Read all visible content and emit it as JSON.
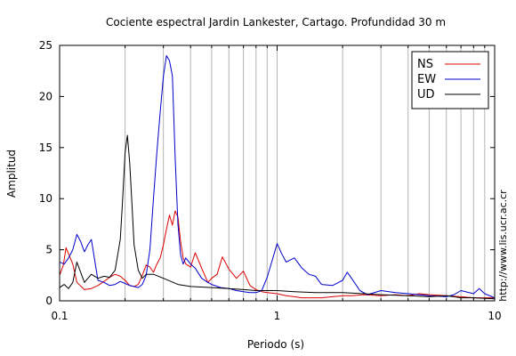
{
  "chart_data": {
    "type": "line",
    "title": "Cociente espectral Jardin Lankester, Cartago. Profundidad 30 m",
    "xlabel": "Periodo (s)",
    "ylabel": "Amplitud",
    "xscale": "log",
    "xlim": [
      0.1,
      10
    ],
    "ylim": [
      0,
      25
    ],
    "xticks": [
      0.1,
      1,
      10
    ],
    "xtick_labels": [
      "0.1",
      "1",
      "10"
    ],
    "yticks": [
      0,
      5,
      10,
      15,
      20,
      25
    ],
    "ytick_labels": [
      "0",
      "5",
      "10",
      "15",
      "20",
      "25"
    ],
    "grid": "vertical, log-spaced",
    "legend_position": "top-right",
    "side_annotation": "http://www.lis.ucr.ac.cr",
    "series": [
      {
        "name": "NS",
        "color": "#dd0000",
        "x": [
          0.1,
          0.104,
          0.107,
          0.11,
          0.115,
          0.12,
          0.13,
          0.14,
          0.15,
          0.16,
          0.17,
          0.18,
          0.19,
          0.2,
          0.21,
          0.22,
          0.23,
          0.24,
          0.25,
          0.26,
          0.27,
          0.28,
          0.29,
          0.3,
          0.31,
          0.32,
          0.33,
          0.34,
          0.35,
          0.36,
          0.37,
          0.38,
          0.4,
          0.42,
          0.45,
          0.48,
          0.5,
          0.53,
          0.56,
          0.6,
          0.65,
          0.7,
          0.75,
          0.8,
          0.85,
          0.9,
          1.0,
          1.1,
          1.2,
          1.3,
          1.4,
          1.6,
          1.8,
          2.0,
          2.2,
          2.5,
          3.0,
          3.5,
          4.0,
          4.5,
          5.0,
          6.0,
          7.0,
          8.0,
          9.0,
          10.0
        ],
        "y": [
          2.5,
          3.5,
          5.2,
          4.6,
          3.6,
          1.8,
          1.1,
          1.2,
          1.5,
          1.9,
          2.3,
          2.6,
          2.4,
          2.0,
          1.5,
          1.4,
          1.6,
          2.5,
          3.5,
          3.3,
          2.8,
          3.6,
          4.2,
          5.5,
          7.0,
          8.4,
          7.4,
          8.8,
          8.2,
          5.8,
          4.2,
          3.6,
          3.3,
          4.7,
          3.2,
          1.8,
          2.2,
          2.6,
          4.3,
          3.1,
          2.2,
          2.9,
          1.5,
          1.1,
          0.9,
          0.8,
          0.7,
          0.5,
          0.4,
          0.3,
          0.3,
          0.3,
          0.4,
          0.5,
          0.5,
          0.6,
          0.5,
          0.6,
          0.5,
          0.7,
          0.6,
          0.5,
          0.4,
          0.3,
          0.3,
          0.3
        ]
      },
      {
        "name": "EW",
        "color": "#0000cc",
        "x": [
          0.1,
          0.105,
          0.11,
          0.115,
          0.12,
          0.125,
          0.13,
          0.135,
          0.14,
          0.15,
          0.16,
          0.17,
          0.18,
          0.19,
          0.2,
          0.21,
          0.22,
          0.23,
          0.24,
          0.25,
          0.26,
          0.27,
          0.28,
          0.29,
          0.3,
          0.31,
          0.32,
          0.33,
          0.34,
          0.35,
          0.36,
          0.37,
          0.38,
          0.4,
          0.42,
          0.45,
          0.48,
          0.5,
          0.55,
          0.6,
          0.65,
          0.7,
          0.75,
          0.8,
          0.85,
          0.9,
          0.95,
          1.0,
          1.05,
          1.1,
          1.2,
          1.3,
          1.4,
          1.5,
          1.6,
          1.8,
          2.0,
          2.1,
          2.2,
          2.4,
          2.6,
          3.0,
          3.5,
          4.0,
          4.5,
          5.0,
          6.0,
          6.5,
          7.0,
          8.0,
          8.5,
          9.0,
          10.0
        ],
        "y": [
          3.8,
          3.6,
          4.2,
          5.0,
          6.5,
          5.8,
          4.8,
          5.5,
          6.0,
          2.0,
          1.8,
          1.5,
          1.6,
          1.9,
          1.7,
          1.5,
          1.4,
          1.3,
          1.6,
          2.5,
          5.0,
          10.0,
          14.5,
          18.5,
          22.0,
          24.0,
          23.5,
          22.0,
          14.0,
          7.5,
          4.5,
          3.6,
          4.2,
          3.6,
          3.2,
          2.2,
          1.8,
          1.6,
          1.3,
          1.2,
          1.0,
          0.9,
          0.8,
          0.8,
          1.0,
          2.3,
          4.0,
          5.6,
          4.6,
          3.8,
          4.2,
          3.2,
          2.6,
          2.4,
          1.6,
          1.5,
          2.0,
          2.8,
          2.2,
          1.0,
          0.6,
          1.0,
          0.8,
          0.7,
          0.6,
          0.5,
          0.4,
          0.6,
          1.0,
          0.7,
          1.2,
          0.7,
          0.3
        ]
      },
      {
        "name": "UD",
        "color": "#000000",
        "x": [
          0.1,
          0.105,
          0.11,
          0.115,
          0.12,
          0.13,
          0.14,
          0.15,
          0.16,
          0.17,
          0.18,
          0.19,
          0.195,
          0.2,
          0.205,
          0.21,
          0.215,
          0.22,
          0.23,
          0.24,
          0.25,
          0.27,
          0.3,
          0.35,
          0.4,
          0.5,
          0.6,
          0.7,
          0.8,
          1.0,
          1.2,
          1.5,
          2.0,
          2.5,
          3.0,
          4.0,
          5.0,
          6.0,
          7.0,
          8.0,
          10.0
        ],
        "y": [
          1.3,
          1.6,
          1.2,
          1.8,
          3.8,
          1.8,
          2.6,
          2.2,
          2.4,
          2.3,
          3.0,
          6.0,
          10.0,
          14.5,
          16.2,
          13.5,
          9.5,
          5.5,
          3.0,
          2.2,
          2.6,
          2.6,
          2.2,
          1.6,
          1.4,
          1.3,
          1.2,
          1.1,
          1.0,
          1.0,
          0.9,
          0.8,
          0.8,
          0.7,
          0.6,
          0.5,
          0.4,
          0.5,
          0.3,
          0.3,
          0.2
        ]
      }
    ]
  }
}
